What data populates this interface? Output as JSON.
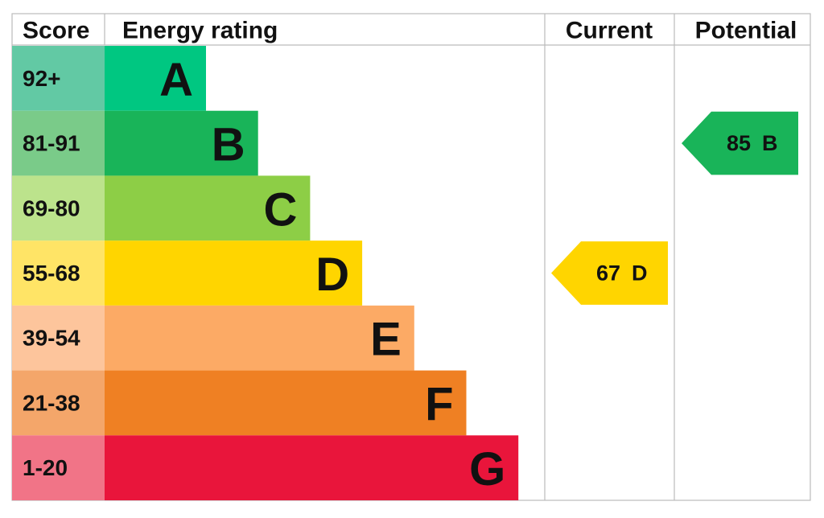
{
  "header": {
    "score": "Score",
    "rating": "Energy rating",
    "current": "Current",
    "potential": "Potential"
  },
  "bands": [
    {
      "score": "92+",
      "letter": "A",
      "color": "#00c781",
      "score_color": "#62c9a4"
    },
    {
      "score": "81-91",
      "letter": "B",
      "color": "#19b459",
      "score_color": "#7acb89"
    },
    {
      "score": "69-80",
      "letter": "C",
      "color": "#8dce46",
      "score_color": "#bce38c"
    },
    {
      "score": "55-68",
      "letter": "D",
      "color": "#ffd500",
      "score_color": "#ffe466"
    },
    {
      "score": "39-54",
      "letter": "E",
      "color": "#fcaa65",
      "score_color": "#fdc59c"
    },
    {
      "score": "21-38",
      "letter": "F",
      "color": "#ef8023",
      "score_color": "#f4a66a"
    },
    {
      "score": "1-20",
      "letter": "G",
      "color": "#e9153b",
      "score_color": "#f17487"
    }
  ],
  "current": {
    "value": 67,
    "letter": "D",
    "color": "#ffd500"
  },
  "potential": {
    "value": 85,
    "letter": "B",
    "color": "#19b459"
  }
}
